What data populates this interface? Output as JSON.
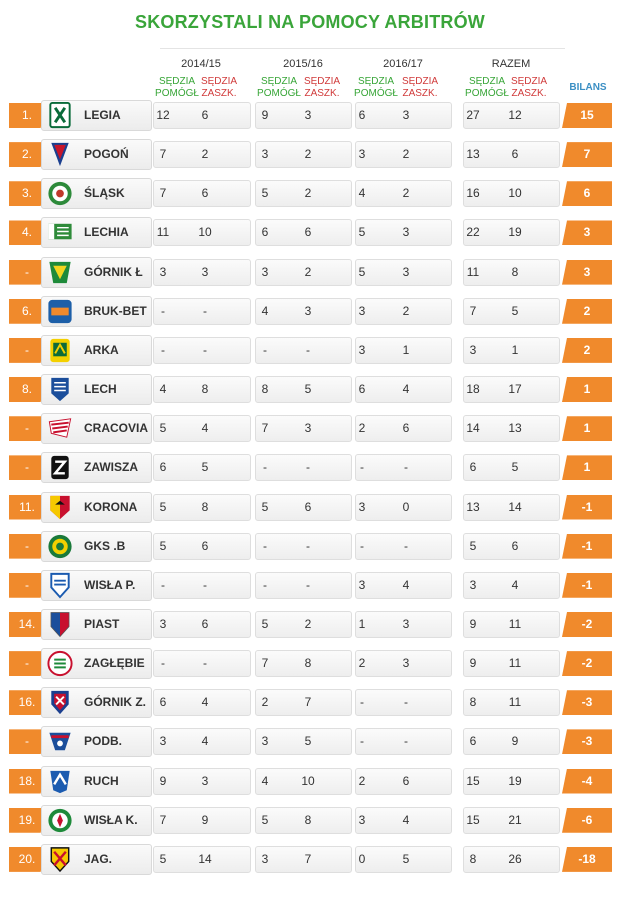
{
  "title": "SKORZYSTALI NA POMOCY ARBITRÓW",
  "headers": {
    "seasons": [
      "2014/15",
      "2015/16",
      "2016/17",
      "RAZEM"
    ],
    "helped_line1": "SĘDZIA",
    "helped_line2": "POMÓGŁ",
    "harmed_line1": "SĘDZIA",
    "harmed_line2": "ZASZK.",
    "bilans": "BILANS"
  },
  "colors": {
    "accent": "#f08a2c",
    "title": "#3aa53a",
    "helped": "#37a537",
    "harmed": "#d03a3a",
    "bilans_header": "#3b8fc4"
  },
  "rows": [
    {
      "rank": "1.",
      "team": "LEGIA",
      "logo": "legia-crest",
      "v": [
        "12",
        "6",
        "9",
        "3",
        "6",
        "3",
        "27",
        "12"
      ],
      "bilans": "15"
    },
    {
      "rank": "2.",
      "team": "POGOŃ",
      "logo": "pogon-crest",
      "v": [
        "7",
        "2",
        "3",
        "2",
        "3",
        "2",
        "13",
        "6"
      ],
      "bilans": "7"
    },
    {
      "rank": "3.",
      "team": "ŚLĄSK",
      "logo": "slask-crest",
      "v": [
        "7",
        "6",
        "5",
        "2",
        "4",
        "2",
        "16",
        "10"
      ],
      "bilans": "6"
    },
    {
      "rank": "4.",
      "team": "LECHIA",
      "logo": "lechia-crest",
      "v": [
        "11",
        "10",
        "6",
        "6",
        "5",
        "3",
        "22",
        "19"
      ],
      "bilans": "3"
    },
    {
      "rank": "-",
      "team": "GÓRNIK Ł",
      "logo": "gornik-leczna-crest",
      "v": [
        "3",
        "3",
        "3",
        "2",
        "5",
        "3",
        "11",
        "8"
      ],
      "bilans": "3"
    },
    {
      "rank": "6.",
      "team": "BRUK-BET",
      "logo": "bruk-bet-crest",
      "v": [
        "-",
        "-",
        "4",
        "3",
        "3",
        "2",
        "7",
        "5"
      ],
      "bilans": "2"
    },
    {
      "rank": "-",
      "team": "ARKA",
      "logo": "arka-crest",
      "v": [
        "-",
        "-",
        "-",
        "-",
        "3",
        "1",
        "3",
        "1"
      ],
      "bilans": "2"
    },
    {
      "rank": "8.",
      "team": "LECH",
      "logo": "lech-crest",
      "v": [
        "4",
        "8",
        "8",
        "5",
        "6",
        "4",
        "18",
        "17"
      ],
      "bilans": "1"
    },
    {
      "rank": "-",
      "team": "CRACOVIA",
      "logo": "cracovia-crest",
      "v": [
        "5",
        "4",
        "7",
        "3",
        "2",
        "6",
        "14",
        "13"
      ],
      "bilans": "1"
    },
    {
      "rank": "-",
      "team": "ZAWISZA",
      "logo": "zawisza-crest",
      "v": [
        "6",
        "5",
        "-",
        "-",
        "-",
        "-",
        "6",
        "5"
      ],
      "bilans": "1"
    },
    {
      "rank": "11.",
      "team": "KORONA",
      "logo": "korona-crest",
      "v": [
        "5",
        "8",
        "5",
        "6",
        "3",
        "0",
        "13",
        "14"
      ],
      "bilans": "-1"
    },
    {
      "rank": "-",
      "team": "GKS .B",
      "logo": "gks-belchatow-crest",
      "v": [
        "5",
        "6",
        "-",
        "-",
        "-",
        "-",
        "5",
        "6"
      ],
      "bilans": "-1"
    },
    {
      "rank": "-",
      "team": "WISŁA P.",
      "logo": "wisla-plock-crest",
      "v": [
        "-",
        "-",
        "-",
        "-",
        "3",
        "4",
        "3",
        "4"
      ],
      "bilans": "-1"
    },
    {
      "rank": "14.",
      "team": "PIAST",
      "logo": "piast-crest",
      "v": [
        "3",
        "6",
        "5",
        "2",
        "1",
        "3",
        "9",
        "11"
      ],
      "bilans": "-2"
    },
    {
      "rank": "-",
      "team": "ZAGŁĘBIE",
      "logo": "zaglebie-crest",
      "v": [
        "-",
        "-",
        "7",
        "8",
        "2",
        "3",
        "9",
        "11"
      ],
      "bilans": "-2"
    },
    {
      "rank": "16.",
      "team": "GÓRNIK Z.",
      "logo": "gornik-zabrze-crest",
      "v": [
        "6",
        "4",
        "2",
        "7",
        "-",
        "-",
        "8",
        "11"
      ],
      "bilans": "-3"
    },
    {
      "rank": "-",
      "team": "PODB.",
      "logo": "podbeskidzie-crest",
      "v": [
        "3",
        "4",
        "3",
        "5",
        "-",
        "-",
        "6",
        "9"
      ],
      "bilans": "-3"
    },
    {
      "rank": "18.",
      "team": "RUCH",
      "logo": "ruch-crest",
      "v": [
        "9",
        "3",
        "4",
        "10",
        "2",
        "6",
        "15",
        "19"
      ],
      "bilans": "-4"
    },
    {
      "rank": "19.",
      "team": "WISŁA K.",
      "logo": "wisla-krakow-crest",
      "v": [
        "7",
        "9",
        "5",
        "8",
        "3",
        "4",
        "15",
        "21"
      ],
      "bilans": "-6"
    },
    {
      "rank": "20.",
      "team": "JAG.",
      "logo": "jagiellonia-crest",
      "v": [
        "5",
        "14",
        "3",
        "7",
        "0",
        "5",
        "8",
        "26"
      ],
      "bilans": "-18"
    }
  ]
}
